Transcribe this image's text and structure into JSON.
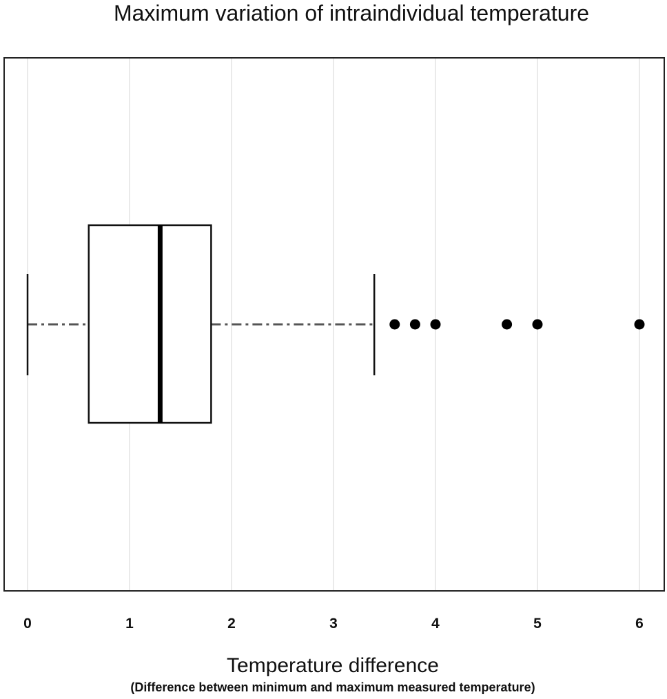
{
  "chart_data": {
    "type": "box",
    "title": "Maximum variation of intraindividual temperature",
    "xlabel": "Temperature difference",
    "xlabel_sub": "(Difference between minimum and maximum measured temperature)",
    "ylabel": "",
    "xlim": [
      0,
      6
    ],
    "orientation": "horizontal",
    "grid": true,
    "x_ticks": [
      0,
      1,
      2,
      3,
      4,
      5,
      6
    ],
    "x_tick_labels": [
      "0",
      "1",
      "2",
      "3",
      "4",
      "5",
      "6"
    ],
    "box": {
      "whisker_low": 0,
      "q1": 0.6,
      "median": 1.3,
      "q3": 1.8,
      "whisker_high": 3.4
    },
    "outliers": [
      3.6,
      3.8,
      4.0,
      4.7,
      5.0,
      6.0
    ]
  }
}
